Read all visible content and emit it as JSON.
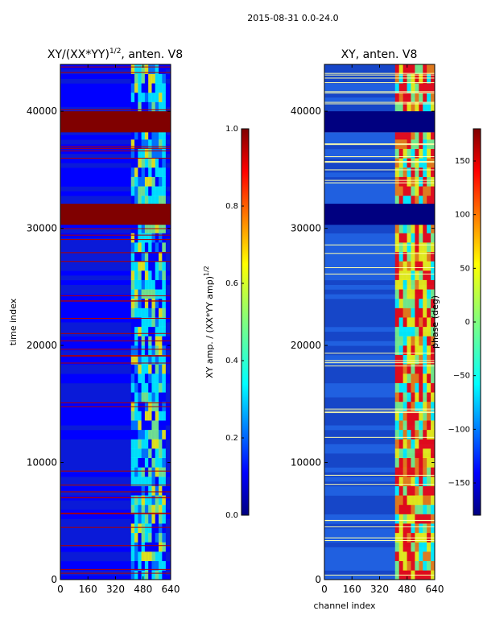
{
  "figure_title": "2015-08-31 0.0-24.0",
  "chart_data": [
    {
      "type": "heatmap",
      "title": "XY/(XX*YY)^{1/2}, anten. V8",
      "title_main": "XY/(XX*YY)",
      "title_sup": "1/2",
      "title_tail": ", anten. V8",
      "xlabel": "",
      "ylabel": "time index",
      "xlim": [
        0,
        640
      ],
      "ylim": [
        0,
        44000
      ],
      "xticks": [
        0,
        160,
        320,
        480,
        640
      ],
      "yticks": [
        0,
        10000,
        20000,
        30000,
        40000
      ],
      "colorbar": {
        "label_main": "XY amp. / (XX*YY amp)",
        "label_sup": "1/2",
        "range": [
          0.0,
          1.0
        ],
        "ticks": [
          "0.0",
          "0.2",
          "0.4",
          "0.6",
          "0.8",
          "1.0"
        ],
        "tick_values": [
          0.0,
          0.2,
          0.4,
          0.6,
          0.8,
          1.0
        ]
      },
      "saturated_time_bands": [
        [
          38200,
          40000
        ],
        [
          30300,
          32100
        ]
      ],
      "active_channel_band": [
        410,
        610
      ]
    },
    {
      "type": "heatmap",
      "title": "XY, anten. V8",
      "xlabel": "channel index",
      "ylabel": "",
      "xlim": [
        0,
        640
      ],
      "ylim": [
        0,
        44000
      ],
      "xticks": [
        0,
        160,
        320,
        480,
        640
      ],
      "yticks": [
        0,
        10000,
        20000,
        30000,
        40000
      ],
      "colorbar": {
        "label": "phase (deg)",
        "range": [
          -180,
          180
        ],
        "ticks": [
          "150",
          "100",
          "50",
          "0",
          "−50",
          "−100",
          "−150"
        ],
        "tick_values": [
          150,
          100,
          50,
          0,
          -50,
          -100,
          -150
        ]
      },
      "flagged_time_bands": [
        [
          38200,
          40000
        ],
        [
          30300,
          32100
        ]
      ],
      "active_channel_band": [
        410,
        640
      ]
    }
  ],
  "colors": {
    "jet": [
      "#000080",
      "#0000ff",
      "#0080ff",
      "#00ffff",
      "#80ff80",
      "#ffff00",
      "#ff8000",
      "#ff0000",
      "#800000"
    ]
  }
}
